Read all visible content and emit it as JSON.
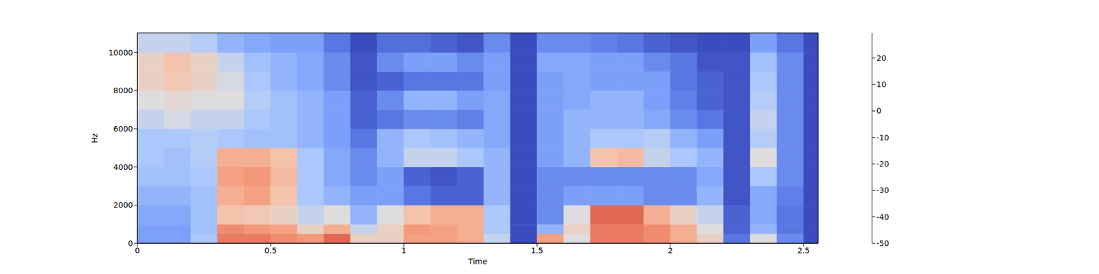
{
  "chart_data": {
    "type": "heatmap",
    "xlabel": "Time",
    "ylabel": "Hz",
    "xlim": [
      0,
      2.555
    ],
    "ylim": [
      0,
      11025
    ],
    "xticks": [
      0,
      0.5,
      1,
      1.5,
      2,
      2.5
    ],
    "yticks": [
      0,
      2000,
      4000,
      6000,
      8000,
      10000
    ],
    "x_edges": [
      0,
      0.1,
      0.2,
      0.3,
      0.4,
      0.5,
      0.6,
      0.7,
      0.8,
      0.9,
      1.0,
      1.1,
      1.2,
      1.3,
      1.4,
      1.5,
      1.6,
      1.7,
      1.8,
      1.9,
      2.0,
      2.1,
      2.2,
      2.3,
      2.4,
      2.5,
      2.555
    ],
    "y_edges": [
      0,
      500,
      1000,
      2000,
      3000,
      4000,
      5000,
      6000,
      7000,
      8000,
      9000,
      10000,
      11025
    ],
    "cells": [
      [
        -30,
        -30,
        -20,
        15,
        15,
        12,
        10,
        18,
        -5,
        -5,
        8,
        8,
        5,
        -15,
        -50,
        8,
        -10,
        15,
        15,
        12,
        5,
        -5,
        -40,
        -10,
        -35,
        -50
      ],
      [
        -30,
        -30,
        -22,
        12,
        10,
        8,
        -5,
        5,
        -15,
        -5,
        10,
        8,
        5,
        -20,
        -50,
        -25,
        -5,
        15,
        15,
        12,
        5,
        -10,
        -45,
        -25,
        -40,
        -50
      ],
      [
        -28,
        -28,
        -22,
        0,
        -2,
        -5,
        -15,
        -10,
        -25,
        -10,
        0,
        5,
        5,
        -20,
        -50,
        -35,
        -10,
        18,
        18,
        5,
        -5,
        -15,
        -45,
        -28,
        -40,
        -50
      ],
      [
        -25,
        -25,
        -22,
        5,
        8,
        0,
        -20,
        -25,
        -30,
        -30,
        -40,
        -45,
        -45,
        -25,
        -50,
        -35,
        -30,
        -30,
        -30,
        -35,
        -35,
        -25,
        -48,
        -28,
        -38,
        -50
      ],
      [
        -22,
        -22,
        -20,
        8,
        10,
        2,
        -20,
        -28,
        -35,
        -30,
        -45,
        -48,
        -45,
        -25,
        -50,
        -35,
        -35,
        -35,
        -35,
        -35,
        -35,
        -28,
        -48,
        -20,
        -35,
        -50
      ],
      [
        -20,
        -22,
        -18,
        5,
        5,
        0,
        -20,
        -28,
        -35,
        -25,
        -15,
        -15,
        -20,
        -25,
        -50,
        -30,
        -25,
        0,
        2,
        -15,
        -20,
        -25,
        -48,
        -10,
        -35,
        -50
      ],
      [
        -20,
        -20,
        -18,
        -20,
        -22,
        -22,
        -25,
        -30,
        -40,
        -25,
        -20,
        -22,
        -25,
        -28,
        -50,
        -30,
        -25,
        -20,
        -20,
        -18,
        -25,
        -30,
        -48,
        -18,
        -35,
        -50
      ],
      [
        -15,
        -12,
        -15,
        -15,
        -20,
        -22,
        -25,
        -30,
        -45,
        -40,
        -35,
        -35,
        -38,
        -28,
        -50,
        -30,
        -25,
        -25,
        -25,
        -28,
        -35,
        -40,
        -48,
        -15,
        -35,
        -50
      ],
      [
        -10,
        -8,
        -10,
        -10,
        -18,
        -22,
        -25,
        -30,
        -45,
        -35,
        -25,
        -25,
        -30,
        -28,
        -50,
        -30,
        -28,
        -25,
        -25,
        -30,
        -38,
        -45,
        -48,
        -18,
        -35,
        -50
      ],
      [
        -5,
        -2,
        -5,
        -12,
        -20,
        -25,
        -28,
        -35,
        -48,
        -45,
        -40,
        -40,
        -40,
        -30,
        -50,
        -30,
        -28,
        -30,
        -30,
        -30,
        -40,
        -45,
        -48,
        -20,
        -35,
        -50
      ],
      [
        -5,
        0,
        -5,
        -15,
        -22,
        -25,
        -28,
        -35,
        -48,
        -35,
        -30,
        -30,
        -35,
        -30,
        -50,
        -28,
        -28,
        -30,
        -30,
        -35,
        -40,
        -48,
        -48,
        -22,
        -35,
        -50
      ],
      [
        -15,
        -15,
        -18,
        -25,
        -28,
        -30,
        -30,
        -40,
        -50,
        -42,
        -42,
        -45,
        -48,
        -35,
        -50,
        -35,
        -35,
        -38,
        -40,
        -45,
        -48,
        -50,
        -50,
        -30,
        -40,
        -50
      ]
    ],
    "colorbar": {
      "range": [
        -50,
        29.5
      ],
      "ticks": [
        -50,
        -40,
        -30,
        -20,
        -10,
        0,
        10,
        20
      ]
    }
  }
}
